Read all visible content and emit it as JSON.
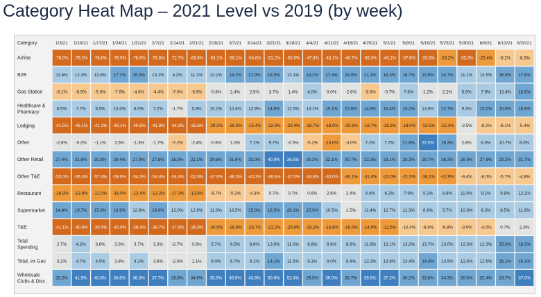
{
  "title": "Category Heat Map – 2021 Level vs 2019 (by week)",
  "chart_data": {
    "type": "heatmap",
    "title": "Category Heat Map – 2021 Level vs 2019 (by week)",
    "corner_label": "Category",
    "columns": [
      "1/3/21",
      "1/10/21",
      "1/17/21",
      "1/24/21",
      "1/31/21",
      "2/7/21",
      "2/14/21",
      "2/21/21",
      "2/28/21",
      "3/7/21",
      "3/14/21",
      "3/21/21",
      "3/28/21",
      "4/4/21",
      "4/11/21",
      "4/18/21",
      "4/25/21",
      "5/2/21",
      "5/9/21",
      "5/16/21",
      "5/23/21",
      "5/30/21",
      "6/6/21",
      "6/13/21",
      "6/20/21"
    ],
    "rows": [
      {
        "label": "Airline",
        "values": [
          "-78.0%",
          "-79.2%",
          "-78.8%",
          "-76.9%",
          "-76.6%",
          "-75.6%",
          "-72.7%",
          "-68.9%",
          "-63.1%",
          "-59.1%",
          "-54.8%",
          "-51.2%",
          "-50.9%",
          "-47.8%",
          "-43.1%",
          "-40.7%",
          "-39.3%",
          "-40.1%",
          "-37.6%",
          "-33.5%",
          "-28.2%",
          "-35.0%",
          "-20.4%",
          "-8.2%",
          "-8.3%"
        ]
      },
      {
        "label": "B2B",
        "values": [
          "11.6%",
          "12.3%",
          "13.8%",
          "17.7%",
          "15.3%",
          "13.1%",
          "4.2%",
          "11.1%",
          "13.1%",
          "14.1%",
          "17.0%",
          "18.5%",
          "13.1%",
          "14.2%",
          "17.4%",
          "24.0%",
          "21.1%",
          "18.3%",
          "16.7%",
          "15.8%",
          "24.7%",
          "11.1%",
          "13.5%",
          "16.8%",
          "17.6%"
        ]
      },
      {
        "label": "Gas Station",
        "values": [
          "-8.1%",
          "-6.9%",
          "-5.3%",
          "-7.9%",
          "-4.6%",
          "-4.4%",
          "-7.0%",
          "-5.9%",
          "-0.8%",
          "2.4%",
          "2.5%",
          "3.7%",
          "1.4%",
          "4.0%",
          "0.0%",
          "-2.8%",
          "-3.5%",
          "-0.7%",
          "7.6%",
          "1.2%",
          "2.2%",
          "5.9%",
          "7.9%",
          "13.4%",
          "15.8%"
        ]
      },
      {
        "label": "Healthcare & Pharmacy",
        "values": [
          "8.5%",
          "7.7%",
          "8.5%",
          "10.4%",
          "8.0%",
          "7.2%",
          "-1.7%",
          "5.8%",
          "10.1%",
          "10.4%",
          "12.8%",
          "14.6%",
          "12.5%",
          "13.1%",
          "15.1%",
          "15.6%",
          "14.9%",
          "16.4%",
          "15.2%",
          "13.6%",
          "22.7%",
          "9.3%",
          "15.5%",
          "15.9%",
          "16.8%"
        ]
      },
      {
        "label": "Lodging",
        "values": [
          "-41.5%",
          "-43.1%",
          "-41.1%",
          "-42.1%",
          "-40.6%",
          "-41.8%",
          "-34.2%",
          "-35.8%",
          "-29.2%",
          "-29.0%",
          "-25.4%",
          "-22.0%",
          "-23.4%",
          "-18.7%",
          "-18.0%",
          "-20.8%",
          "-18.7%",
          "-19.2%",
          "-19.0%",
          "-13.5%",
          "-15.4%",
          "-2.5%",
          "-8.2%",
          "-6.1%",
          "-5.4%"
        ]
      },
      {
        "label": "Other",
        "values": [
          "-2.8%",
          "-0.2%",
          "-1.1%",
          "2.5%",
          "-1.3%",
          "-1.7%",
          "-7.2%",
          "-2.4%",
          "-0.6%",
          "1.0%",
          "7.1%",
          "9.7%",
          "-0.5%",
          "-5.2%",
          "-13.0%",
          "-3.0%",
          "7.2%",
          "7.7%",
          "21.8%",
          "37.5%",
          "16.3%",
          "2.8%",
          "6.0%",
          "10.7%",
          "8.0%"
        ]
      },
      {
        "label": "Other Retail",
        "values": [
          "27.4%",
          "31.6%",
          "30.8%",
          "28.4%",
          "27.9%",
          "27.8%",
          "16.9%",
          "22.1%",
          "29.6%",
          "31.6%",
          "33.0%",
          "40.9%",
          "36.5%",
          "30.2%",
          "32.1%",
          "30.7%",
          "32.3%",
          "33.1%",
          "28.3%",
          "28.7%",
          "26.3%",
          "26.9%",
          "27.6%",
          "29.2%",
          "31.7%"
        ]
      },
      {
        "label": "Other T&E",
        "values": [
          "-55.0%",
          "-56.4%",
          "-57.4%",
          "-58.6%",
          "-54.3%",
          "-54.4%",
          "-54.4%",
          "-52.6%",
          "-47.6%",
          "-46.5%",
          "-43.3%",
          "-39.4%",
          "-37.0%",
          "-34.8%",
          "-33.0%",
          "-30.1%",
          "-31.4%",
          "-23.0%",
          "-21.5%",
          "-16.1%",
          "-12.9%",
          "-9.4%",
          "-8.0%",
          "-5.7%",
          "-4.8%"
        ]
      },
      {
        "label": "Restaurant",
        "values": [
          "-16.9%",
          "-13.8%",
          "-12.0%",
          "-16.0%",
          "-12.4%",
          "-13.2%",
          "-17.3%",
          "-13.8%",
          "-6.7%",
          "-5.2%",
          "-4.3%",
          "0.7%",
          "0.7%",
          "0.6%",
          "2.6%",
          "2.4%",
          "4.4%",
          "6.2%",
          "7.9%",
          "5.1%",
          "6.6%",
          "11.9%",
          "9.1%",
          "9.8%",
          "12.2%"
        ]
      },
      {
        "label": "Supermarket",
        "values": [
          "14.4%",
          "19.7%",
          "15.9%",
          "16.9%",
          "12.8%",
          "19.0%",
          "12.0%",
          "12.6%",
          "11.0%",
          "13.5%",
          "15.0%",
          "18.5%",
          "28.1%",
          "15.9%",
          "10.5%",
          "1.5%",
          "11.4%",
          "12.7%",
          "11.3%",
          "8.6%",
          "5.7%",
          "10.9%",
          "8.3%",
          "8.5%",
          "11.8%"
        ]
      },
      {
        "label": "T&E",
        "values": [
          "-41.1%",
          "-40.8%",
          "-39.4%",
          "-40.8%",
          "-38.4%",
          "-38.7%",
          "-37.8%",
          "-35.9%",
          "-30.5%",
          "-28.8%",
          "-25.7%",
          "-21.2%",
          "-20.8%",
          "-19.2%",
          "-16.8%",
          "-16.0%",
          "-14.9%",
          "-12.5%",
          "-10.4%",
          "-8.8%",
          "-6.8%",
          "-3.0%",
          "-4.0%",
          "0.7%",
          "2.3%"
        ]
      },
      {
        "label": "Total Spending",
        "values": [
          "2.7%",
          "4.2%",
          "3.6%",
          "3.3%",
          "3.7%",
          "3.3%",
          "-2.7%",
          "0.8%",
          "5.7%",
          "6.5%",
          "8.8%",
          "13.6%",
          "11.0%",
          "8.8%",
          "8.6%",
          "8.8%",
          "11.6%",
          "13.1%",
          "13.2%",
          "13.7%",
          "13.0%",
          "12.3%",
          "12.3%",
          "15.0%",
          "16.3%"
        ]
      },
      {
        "label": "Total, ex Gas",
        "values": [
          "3.2%",
          "4.7%",
          "4.0%",
          "3.8%",
          "4.1%",
          "3.6%",
          "-2.5%",
          "1.1%",
          "6.0%",
          "6.7%",
          "9.1%",
          "14.1%",
          "11.5%",
          "9.1%",
          "9.0%",
          "9.4%",
          "12.3%",
          "13.8%",
          "13.4%",
          "14.4%",
          "13.5%",
          "12.6%",
          "12.5%",
          "15.1%",
          "16.3%"
        ]
      },
      {
        "label": "Wholesale Clubs & Disc.",
        "values": [
          "33.2%",
          "41.5%",
          "40.8%",
          "36.6%",
          "36.3%",
          "37.7%",
          "26.8%",
          "34.6%",
          "35.0%",
          "40.9%",
          "43.6%",
          "50.6%",
          "52.4%",
          "29.5%",
          "39.0%",
          "33.7%",
          "39.5%",
          "37.2%",
          "30.2%",
          "33.8%",
          "34.3%",
          "30.6%",
          "32.4%",
          "33.7%",
          "37.0%"
        ]
      }
    ],
    "colors": {
      "deep_negative": "#d2691c",
      "mid_negative": "#ef9a3a",
      "light_negative": "#f7c98f",
      "neutral": "#e2e4e1",
      "light_positive": "#a9cbe3",
      "mid_positive": "#6fa6d2",
      "deep_positive": "#3f7fbf",
      "background": "#f2f2f2",
      "title": "#1b2a46"
    }
  }
}
